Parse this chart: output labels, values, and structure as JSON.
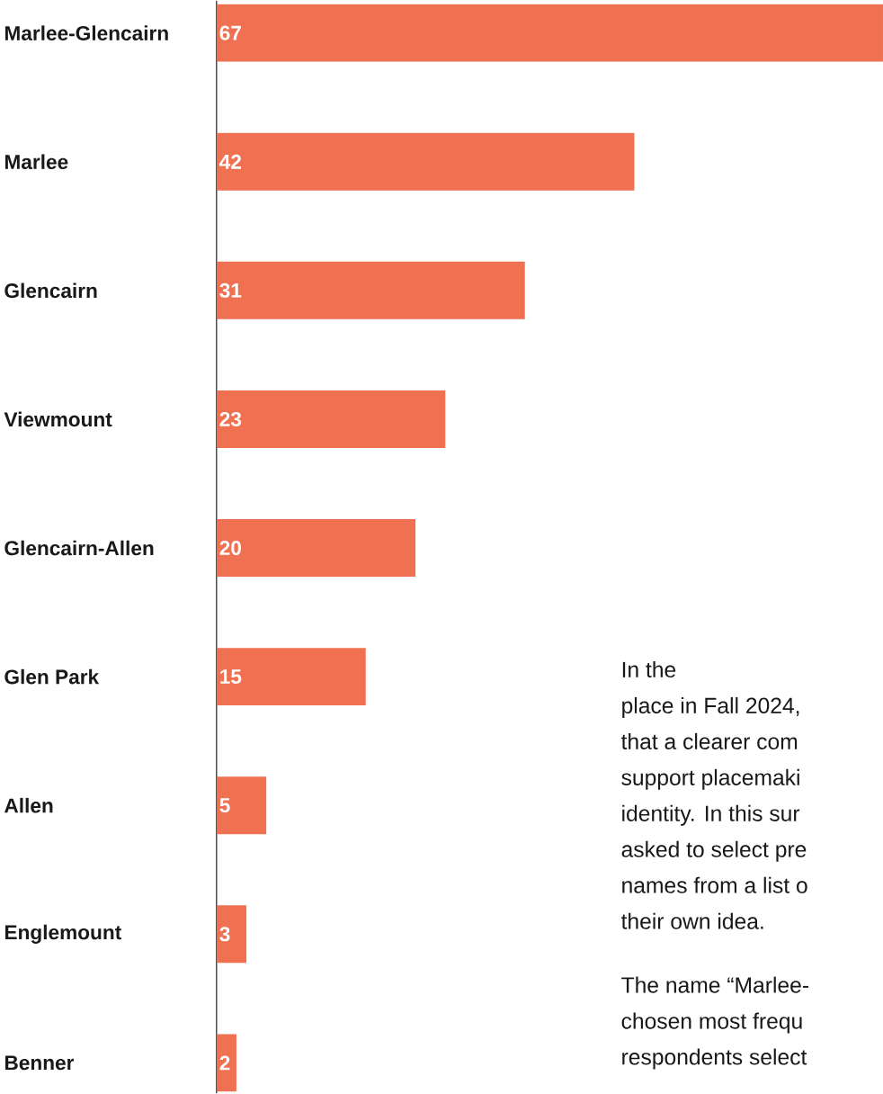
{
  "chart_data": {
    "type": "bar",
    "orientation": "horizontal",
    "categories": [
      "Marlee-Glencairn",
      "Marlee",
      "Glencairn",
      "Viewmount",
      "Glencairn-Allen",
      "Glen Park",
      "Allen",
      "Englemount",
      "Benner"
    ],
    "values": [
      67,
      42,
      31,
      23,
      20,
      15,
      5,
      3,
      2
    ],
    "color": "#ef7152",
    "xlim": [
      0,
      67
    ],
    "data_labels": true,
    "annotations": [
      "In the",
      "place in Fall 2024,",
      "that a clearer com",
      "support placemaki",
      "identity. In this sur",
      "asked to select pre",
      "names from a list o",
      "their own idea.",
      "The name “Marlee-",
      "chosen most frequ",
      "respondents select"
    ]
  }
}
